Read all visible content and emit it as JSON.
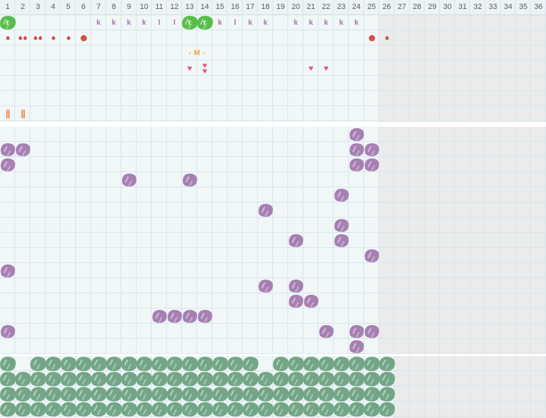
{
  "header": {
    "columns": [
      "1",
      "2",
      "3",
      "4",
      "5",
      "6",
      "7",
      "8",
      "9",
      "10",
      "11",
      "12",
      "13",
      "14",
      "15",
      "16",
      "17",
      "18",
      "19",
      "20",
      "21",
      "22",
      "23",
      "24",
      "25",
      "26",
      "27",
      "28",
      "29",
      "30",
      "31",
      "32",
      "33",
      "34",
      "35",
      "36"
    ]
  },
  "colors": {
    "green_plant": "#56bd4a",
    "purple_plant": "#a77fb2",
    "sage_plant": "#73a685",
    "droplet": "#d94b45",
    "heart": "#dc5c85",
    "letter": "#b273ae",
    "event_text": "#f0a238",
    "bar_orange": "#ee8153",
    "grid_line": "#d5e5ee",
    "cell_active": "#f1f7f7",
    "cell_inactive": "#ebebeb",
    "header_bg": "#edf3f5",
    "header_text": "#4d5b66",
    "separator": "#ffffff"
  },
  "top_section": {
    "row_count": 7,
    "active_columns": 25,
    "items": [
      {
        "type": "green-plant",
        "row": 1,
        "col": 1,
        "label": "r"
      },
      {
        "type": "letter",
        "row": 1,
        "col": 7,
        "label": "k"
      },
      {
        "type": "letter",
        "row": 1,
        "col": 8,
        "label": "k"
      },
      {
        "type": "letter",
        "row": 1,
        "col": 9,
        "label": "k"
      },
      {
        "type": "letter",
        "row": 1,
        "col": 10,
        "label": "k"
      },
      {
        "type": "letter",
        "row": 1,
        "col": 11,
        "label": "l"
      },
      {
        "type": "letter",
        "row": 1,
        "col": 12,
        "label": "l"
      },
      {
        "type": "green-plant",
        "row": 1,
        "col": 13,
        "label": "r"
      },
      {
        "type": "green-plant",
        "row": 1,
        "col": 14,
        "label": "r"
      },
      {
        "type": "letter",
        "row": 1,
        "col": 15,
        "label": "k"
      },
      {
        "type": "letter",
        "row": 1,
        "col": 16,
        "label": "l"
      },
      {
        "type": "letter",
        "row": 1,
        "col": 17,
        "label": "k"
      },
      {
        "type": "letter",
        "row": 1,
        "col": 18,
        "label": "k"
      },
      {
        "type": "letter",
        "row": 1,
        "col": 20,
        "label": "k"
      },
      {
        "type": "letter",
        "row": 1,
        "col": 21,
        "label": "k"
      },
      {
        "type": "letter",
        "row": 1,
        "col": 22,
        "label": "k"
      },
      {
        "type": "letter",
        "row": 1,
        "col": 23,
        "label": "k"
      },
      {
        "type": "letter",
        "row": 1,
        "col": 24,
        "label": "k"
      },
      {
        "type": "droplets",
        "row": 2,
        "col": 1,
        "count": 1
      },
      {
        "type": "droplets",
        "row": 2,
        "col": 2,
        "count": 2
      },
      {
        "type": "droplets",
        "row": 2,
        "col": 3,
        "count": 2
      },
      {
        "type": "droplets",
        "row": 2,
        "col": 4,
        "count": 1
      },
      {
        "type": "droplets",
        "row": 2,
        "col": 5,
        "count": 1
      },
      {
        "type": "dot",
        "row": 2,
        "col": 6
      },
      {
        "type": "dot",
        "row": 2,
        "col": 25
      },
      {
        "type": "droplets",
        "row": 2,
        "col": 26,
        "count": 1
      },
      {
        "type": "event-text",
        "row": 3,
        "col": 13,
        "span": 2,
        "label": "- M -"
      },
      {
        "type": "hearts",
        "row": 4,
        "col": 13,
        "count": 1
      },
      {
        "type": "hearts",
        "row": 4,
        "col": 14,
        "count": 2
      },
      {
        "type": "hearts",
        "row": 4,
        "col": 21,
        "count": 1
      },
      {
        "type": "hearts",
        "row": 4,
        "col": 22,
        "count": 1
      },
      {
        "type": "bar",
        "row": 7,
        "col": 1
      },
      {
        "type": "bar",
        "row": 7,
        "col": 2
      }
    ]
  },
  "middle_section": {
    "row_count": 15,
    "active_columns": 25,
    "plant_rows": [
      {
        "row": 1,
        "cols": [
          24
        ]
      },
      {
        "row": 2,
        "cols": [
          1,
          2,
          24,
          25
        ]
      },
      {
        "row": 3,
        "cols": [
          1,
          24,
          25
        ]
      },
      {
        "row": 4,
        "cols": [
          9,
          13
        ]
      },
      {
        "row": 5,
        "cols": [
          23
        ]
      },
      {
        "row": 6,
        "cols": [
          18
        ]
      },
      {
        "row": 7,
        "cols": [
          23
        ]
      },
      {
        "row": 8,
        "cols": [
          20,
          23
        ]
      },
      {
        "row": 9,
        "cols": [
          25
        ]
      },
      {
        "row": 10,
        "cols": [
          1
        ]
      },
      {
        "row": 11,
        "cols": [
          18,
          20
        ]
      },
      {
        "row": 12,
        "cols": [
          20,
          21
        ]
      },
      {
        "row": 13,
        "cols": [
          11,
          12,
          13,
          14
        ]
      },
      {
        "row": 14,
        "cols": [
          1,
          22,
          24,
          25
        ]
      },
      {
        "row": 15,
        "cols": [
          24
        ]
      }
    ]
  },
  "bottom_section": {
    "row_count": 4,
    "active_columns": 26,
    "plant_rows": [
      {
        "row": 1,
        "cols": [
          1,
          3,
          4,
          5,
          6,
          7,
          8,
          9,
          10,
          11,
          12,
          13,
          14,
          15,
          16,
          17,
          19,
          20,
          21,
          22,
          23,
          24,
          25,
          26
        ]
      },
      {
        "row": 2,
        "cols": [
          1,
          2,
          3,
          4,
          5,
          6,
          7,
          8,
          9,
          10,
          11,
          12,
          13,
          14,
          15,
          16,
          17,
          18,
          19,
          20,
          21,
          22,
          23,
          24,
          25,
          26
        ]
      },
      {
        "row": 3,
        "cols": [
          1,
          2,
          3,
          4,
          5,
          6,
          7,
          8,
          9,
          10,
          11,
          12,
          13,
          14,
          15,
          16,
          17,
          18,
          19,
          20,
          21,
          22,
          23,
          24,
          25,
          26
        ]
      },
      {
        "row": 4,
        "cols": [
          1,
          2,
          3,
          4,
          5,
          6,
          7,
          8,
          9,
          10,
          11,
          12,
          13,
          14,
          15,
          16,
          17,
          18,
          19,
          20,
          21,
          22,
          23,
          24,
          25,
          26
        ]
      }
    ]
  }
}
